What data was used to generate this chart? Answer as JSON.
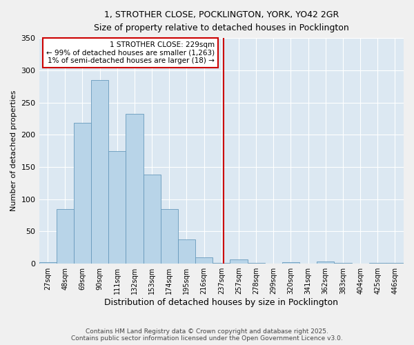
{
  "title_line1": "1, STROTHER CLOSE, POCKLINGTON, YORK, YO42 2GR",
  "title_line2": "Size of property relative to detached houses in Pocklington",
  "xlabel": "Distribution of detached houses by size in Pocklington",
  "ylabel": "Number of detached properties",
  "bar_labels": [
    "27sqm",
    "48sqm",
    "69sqm",
    "90sqm",
    "111sqm",
    "132sqm",
    "153sqm",
    "174sqm",
    "195sqm",
    "216sqm",
    "237sqm",
    "257sqm",
    "278sqm",
    "299sqm",
    "320sqm",
    "341sqm",
    "362sqm",
    "383sqm",
    "404sqm",
    "425sqm",
    "446sqm"
  ],
  "bar_values": [
    2,
    85,
    218,
    285,
    175,
    232,
    138,
    85,
    38,
    10,
    1,
    6,
    1,
    0,
    2,
    0,
    3,
    1,
    0,
    1,
    1
  ],
  "bar_color": "#b8d4e8",
  "bar_edge_color": "#6699bb",
  "vline_color": "#cc0000",
  "ylim": [
    0,
    350
  ],
  "yticks": [
    0,
    50,
    100,
    150,
    200,
    250,
    300,
    350
  ],
  "annotation_title": "1 STROTHER CLOSE: 229sqm",
  "annotation_line1": "← 99% of detached houses are smaller (1,263)",
  "annotation_line2": "1% of semi-detached houses are larger (18) →",
  "annotation_box_color": "#ffffff",
  "annotation_box_edge": "#cc0000",
  "footer_line1": "Contains HM Land Registry data © Crown copyright and database right 2025.",
  "footer_line2": "Contains public sector information licensed under the Open Government Licence v3.0.",
  "fig_bg_color": "#f0f0f0",
  "plot_bg_color": "#dce8f2",
  "grid_color": "#ffffff"
}
